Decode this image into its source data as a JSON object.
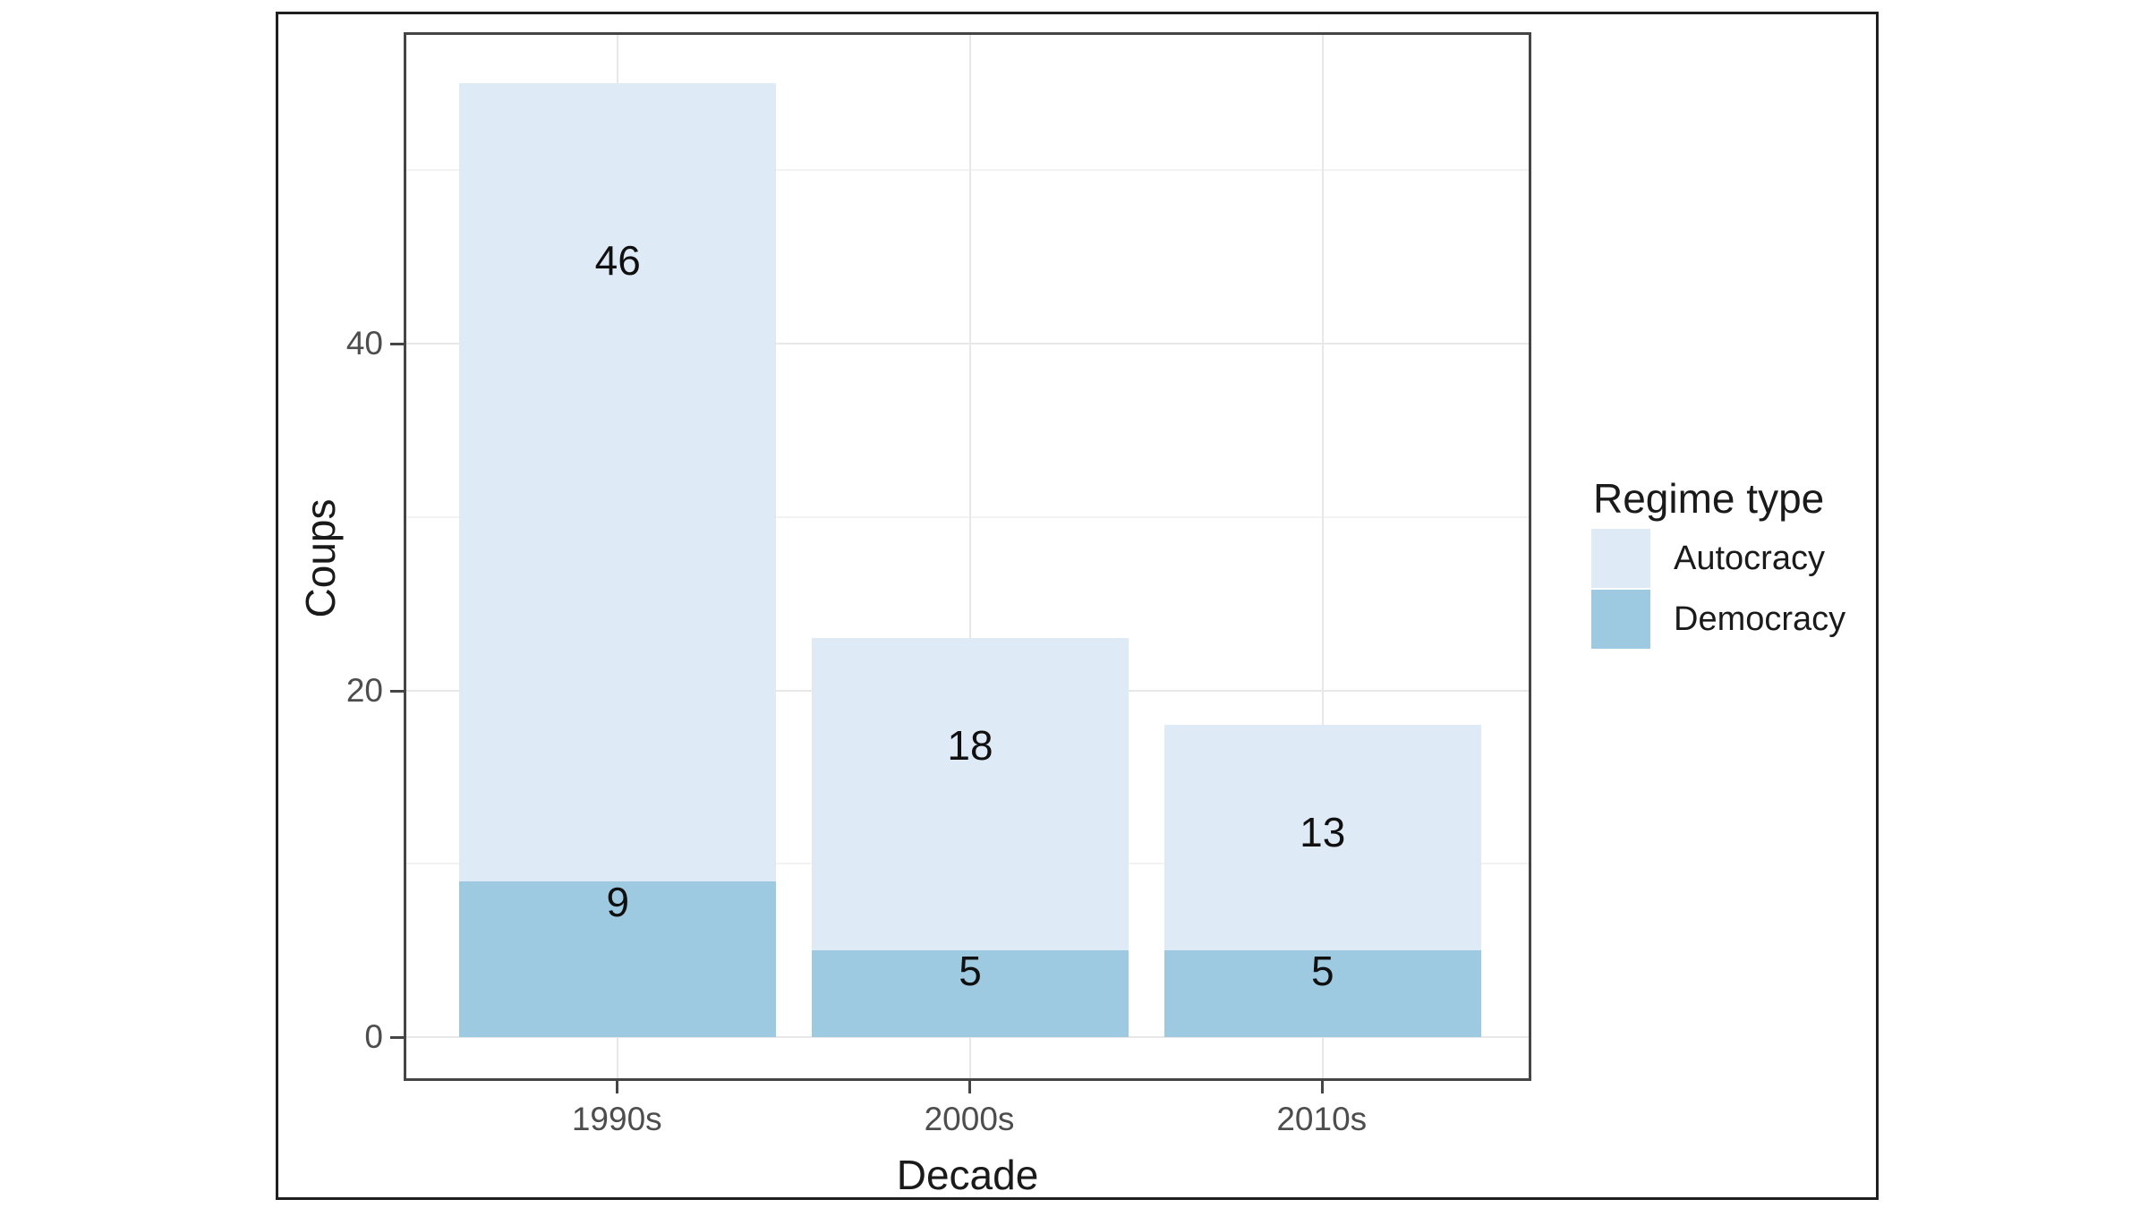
{
  "chart_data": {
    "type": "bar",
    "stacked": true,
    "categories": [
      "1990s",
      "2000s",
      "2010s"
    ],
    "series": [
      {
        "name": "Autocracy",
        "color": "#DEEBF7",
        "values": [
          46,
          18,
          13
        ]
      },
      {
        "name": "Democracy",
        "color": "#9ECAE1",
        "values": [
          9,
          5,
          5
        ]
      }
    ],
    "stack_bottom_first": [
      "Democracy",
      "Autocracy"
    ],
    "bar_labels": {
      "shown": true,
      "placement": "at-own-value"
    },
    "xlabel": "Decade",
    "ylabel": "Coups",
    "ylim": [
      0,
      57.75
    ],
    "yticks": [
      0,
      20,
      40
    ],
    "yticks_minor": [
      10,
      30,
      50
    ],
    "grid": "major-and-minor",
    "legend": {
      "title": "Regime type",
      "position": "right",
      "entries": [
        "Autocracy",
        "Democracy"
      ]
    },
    "theme": {
      "figure_border": "#1f1f1f",
      "panel_border": "#454545",
      "grid_major": "#e8e8e8",
      "grid_minor": "#f3f3f3",
      "tick_color": "#454545",
      "tick_label_color": "#4d4d4d",
      "axis_title_color": "#1a1a1a",
      "bar_label_color": "#101010"
    }
  }
}
